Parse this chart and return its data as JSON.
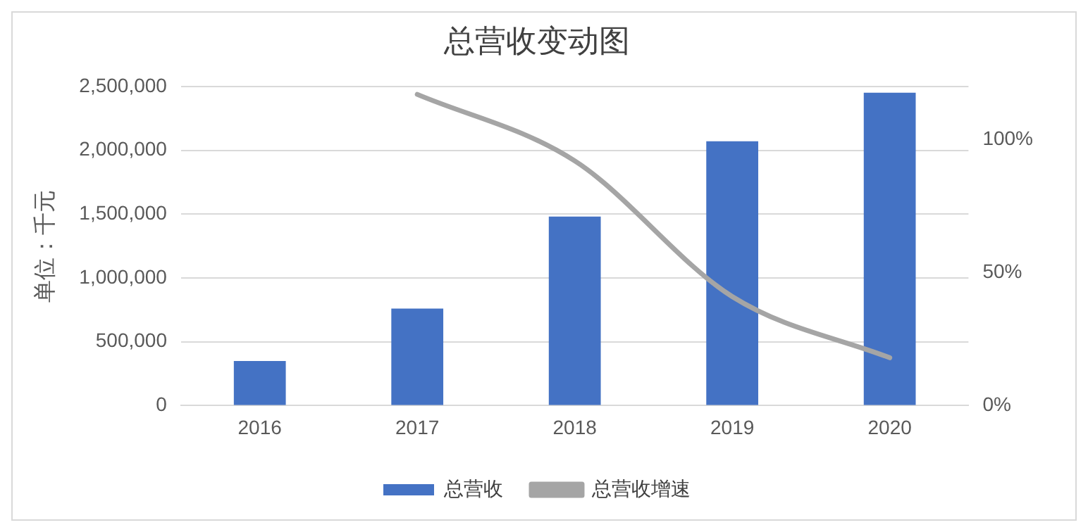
{
  "chart_data": {
    "type": "bar",
    "title": "总营收变动图",
    "ylabel": "单位：千元",
    "categories": [
      "2016",
      "2017",
      "2018",
      "2019",
      "2020"
    ],
    "series": [
      {
        "name": "总营收",
        "color": "#4472c4",
        "values": [
          350000,
          760000,
          1480000,
          2070000,
          2450000
        ]
      },
      {
        "name": "总营收增速",
        "type": "line",
        "axis": "y2",
        "color": "#a5a5a5",
        "values": [
          null,
          117,
          92,
          41,
          18
        ]
      }
    ],
    "ylim": [
      0,
      2500000
    ],
    "yticks": [
      0,
      {
        "value": 500000,
        "label": "500,000"
      },
      {
        "value": 1000000,
        "label": "1,000,000"
      },
      {
        "value": 1500000,
        "label": "1,500,000"
      },
      {
        "value": 2000000,
        "label": "2,000,000"
      },
      {
        "value": 2500000,
        "label": "2,500,000"
      }
    ],
    "y2lim": [
      0,
      120
    ],
    "y2ticks": [
      {
        "value": 0,
        "label": "0%"
      },
      {
        "value": 50,
        "label": "50%"
      },
      {
        "value": 100,
        "label": "100%"
      }
    ],
    "grid": "y",
    "legend": "bottom",
    "marker": "none"
  }
}
